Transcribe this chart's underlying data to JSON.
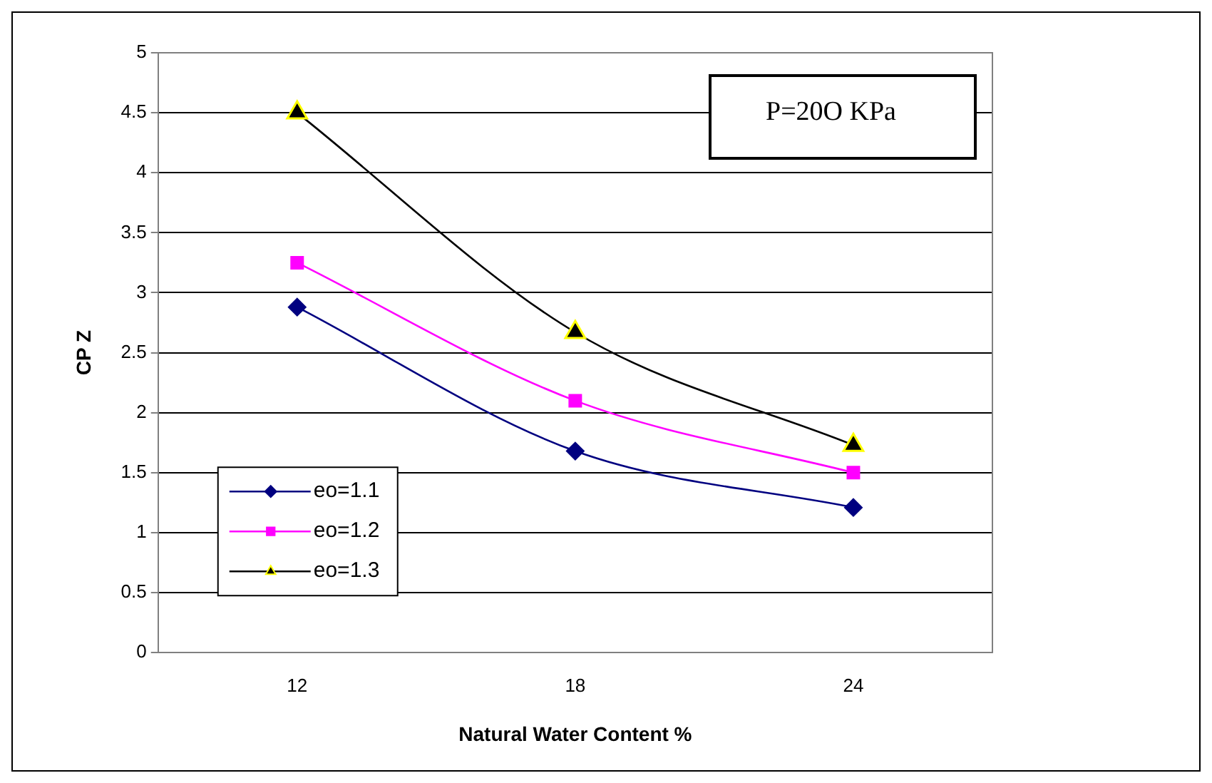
{
  "chart_data": {
    "type": "line",
    "xlabel": "Natural Water Content %",
    "ylabel": "CP Z",
    "categories": [
      "12",
      "18",
      "24"
    ],
    "series": [
      {
        "name": "eo=1.1",
        "color": "#000080",
        "marker": "diamond",
        "values": [
          2.88,
          1.68,
          1.21
        ]
      },
      {
        "name": "eo=1.2",
        "color": "#ff00ff",
        "marker": "square",
        "values": [
          3.25,
          2.1,
          1.5
        ]
      },
      {
        "name": "eo=1.3",
        "color": "#000000",
        "marker": "triangle",
        "values": [
          4.5,
          2.67,
          1.73
        ]
      }
    ],
    "ylim": [
      0,
      5
    ],
    "yticks": [
      0,
      0.5,
      1,
      1.5,
      2,
      2.5,
      3,
      3.5,
      4,
      4.5,
      5
    ],
    "grid": "y",
    "legend": "bottom left",
    "annotations": [
      "P=20O KPa"
    ]
  }
}
